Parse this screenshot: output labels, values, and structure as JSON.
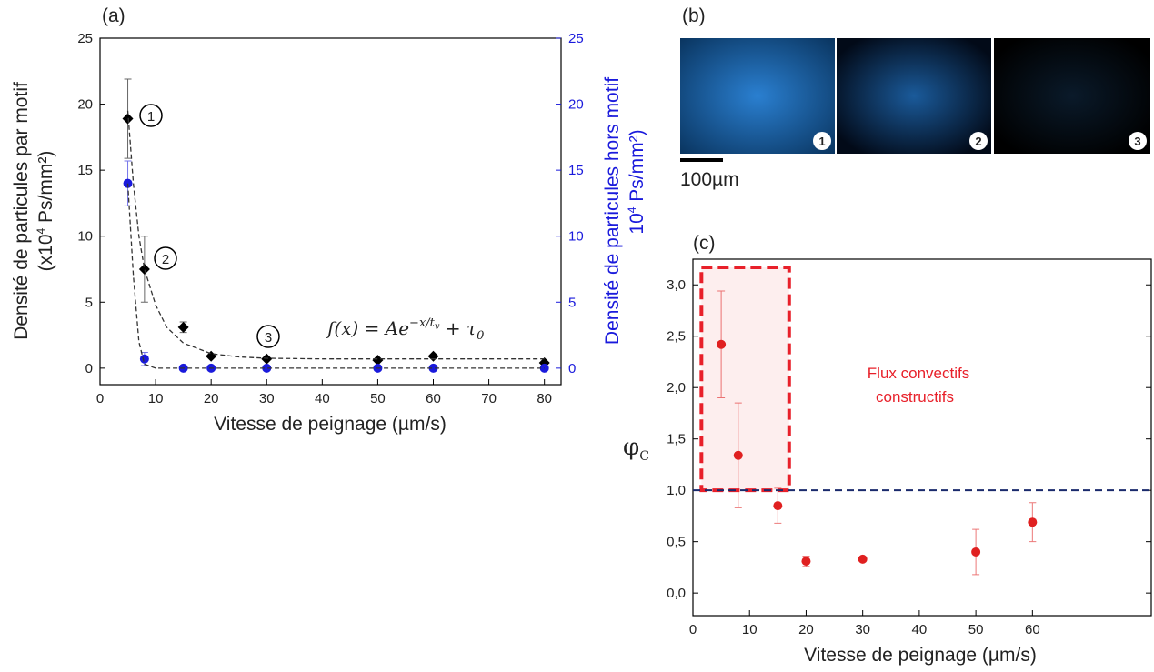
{
  "chart_data": [
    {
      "type": "scatter",
      "panel": "(a)",
      "x_label": "Vitesse de peignage (µm/s)",
      "y_label": [
        "Densité de particules par motif",
        "(x10",
        "4",
        " Ps/mm²)"
      ],
      "y2_label": [
        "Densité de particules hors motif",
        "10",
        "4",
        " Ps/mm²)"
      ],
      "formula": [
        "f(x) = Ae",
        "−x/t",
        "v",
        " + τ",
        "0"
      ],
      "markers": [
        "1",
        "2",
        "3"
      ],
      "xlim": [
        0,
        83
      ],
      "xticks": [
        0,
        10,
        20,
        30,
        40,
        50,
        60,
        70,
        80
      ],
      "ylim": [
        -1.25,
        25
      ],
      "yticks": [
        0,
        5,
        10,
        15,
        20,
        25
      ],
      "y2lim": [
        -1.25,
        25
      ],
      "y2ticks": [
        0,
        5,
        10,
        15,
        20,
        25
      ],
      "y2color": "#1a1adc",
      "series": [
        {
          "color": "#000000",
          "marker": "diamond",
          "x": [
            5,
            8,
            15,
            20,
            30,
            50,
            60,
            80
          ],
          "values": [
            18.9,
            7.5,
            3.1,
            0.9,
            0.7,
            0.6,
            0.9,
            0.4
          ],
          "errors": [
            3.0,
            2.5,
            0.4,
            null,
            null,
            null,
            null,
            null
          ]
        },
        {
          "color": "#1a1adc",
          "marker": "circle",
          "axis": "y2",
          "x": [
            5,
            8,
            15,
            20,
            30,
            50,
            60,
            80
          ],
          "values": [
            14,
            0.7,
            0,
            0,
            0,
            0,
            0,
            0
          ],
          "errors": [
            1.7,
            0.5,
            null,
            null,
            null,
            null,
            null,
            null
          ]
        },
        {
          "color": "#333333",
          "marker": "none",
          "line": "dashed",
          "x": [
            5,
            6,
            7,
            8,
            10,
            12,
            15,
            20,
            25,
            30,
            40,
            50,
            60,
            80
          ],
          "values": [
            19.5,
            14,
            10,
            7.5,
            4.8,
            3.1,
            1.9,
            1.1,
            0.85,
            0.75,
            0.7,
            0.7,
            0.7,
            0.7
          ]
        },
        {
          "color": "#333333",
          "marker": "none",
          "line": "dashed",
          "x": [
            5,
            6,
            7,
            8,
            10,
            15,
            80
          ],
          "values": [
            14,
            7,
            2,
            0.3,
            0,
            0,
            0
          ]
        }
      ]
    },
    {
      "type": "scatter",
      "panel": "(c)",
      "x_label": "Vitesse de peignage (µm/s)",
      "y_label": [
        "φ",
        "C"
      ],
      "annotation": [
        "Flux convectifs",
        "constructifs"
      ],
      "xlim": [
        0,
        81
      ],
      "xticks": [
        0,
        10,
        20,
        30,
        40,
        50,
        60
      ],
      "ylim": [
        -0.22,
        3.25
      ],
      "yticks": [
        {
          "value": 0,
          "label": "0,0"
        },
        {
          "value": 0.5,
          "label": "0,5"
        },
        {
          "value": 1,
          "label": "1,0"
        },
        {
          "value": 1.5,
          "label": "1,5"
        },
        {
          "value": 2,
          "label": "2,0"
        },
        {
          "value": 2.5,
          "label": "2,5"
        },
        {
          "value": 3,
          "label": "3,0"
        }
      ],
      "reference_line": {
        "value": 1.0,
        "color": "#1a2a6c"
      },
      "highlight_region": {
        "xlim": [
          1.5,
          17
        ],
        "ylim": [
          1.0,
          3.17
        ],
        "color": "#e8202a"
      },
      "series": [
        {
          "color": "#e02020",
          "marker": "circle",
          "x": [
            5,
            8,
            15,
            20,
            30,
            50,
            60
          ],
          "values": [
            2.42,
            1.34,
            0.85,
            0.31,
            0.33,
            0.4,
            0.69
          ],
          "errors": [
            0.52,
            0.51,
            0.17,
            0.05,
            0.02,
            0.22,
            0.19
          ]
        }
      ]
    }
  ],
  "images": {
    "panel": "(b)",
    "markers": [
      "1",
      "2",
      "3"
    ],
    "scale_bar": "100µm"
  }
}
